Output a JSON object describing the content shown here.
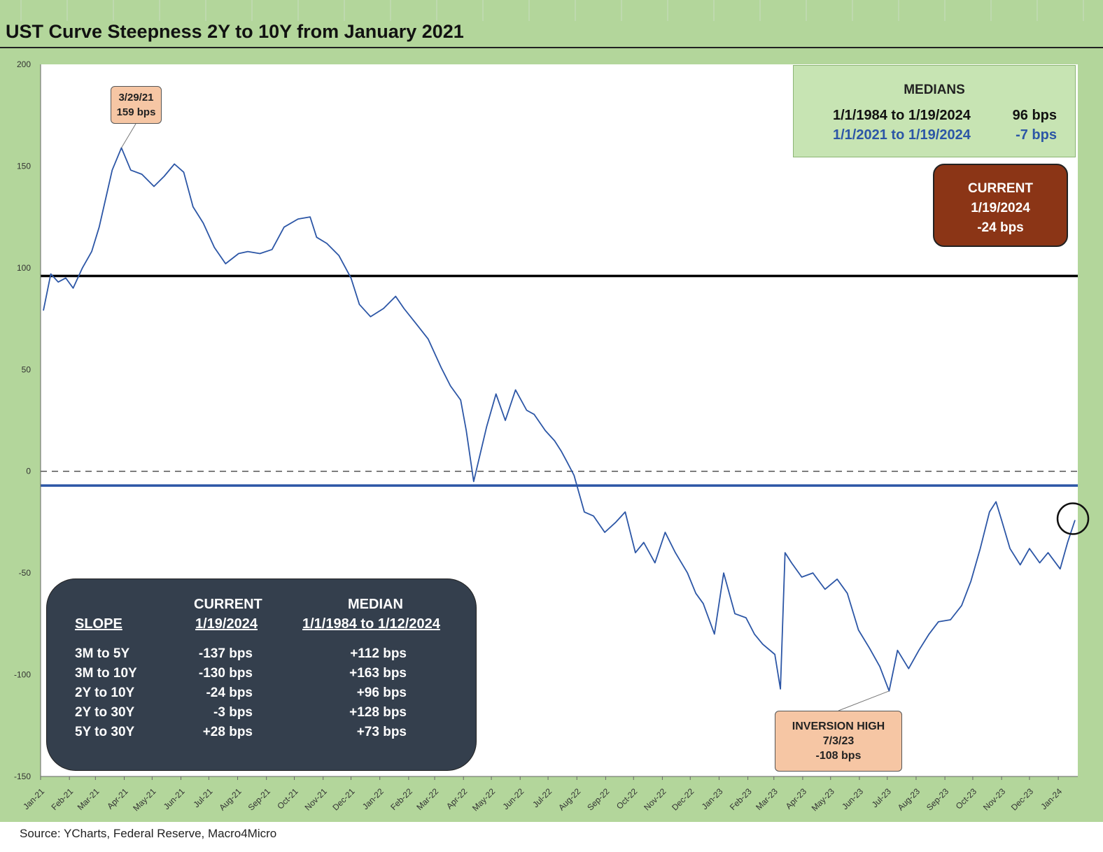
{
  "title": "UST Curve Steepness 2Y to 10Y from January 2021",
  "source": "Source: YCharts, Federal Reserve, Macro4Micro",
  "colors": {
    "frame": "#b3d69b",
    "series": "#2c56a6",
    "current_box": "#8b3516",
    "table_box": "#343f4d",
    "callout": "#f6c6a4"
  },
  "medians": {
    "title": "MEDIANS",
    "rows": [
      {
        "period": "1/1/1984 to 1/19/2024",
        "value": "96 bps",
        "color": "#111111"
      },
      {
        "period": "1/1/2021 to 1/19/2024",
        "value": "-7 bps",
        "color": "#2c56a6"
      }
    ]
  },
  "current": {
    "label": "CURRENT",
    "date": "1/19/2024",
    "value": "-24 bps"
  },
  "callouts": {
    "peak": {
      "date": "3/29/21",
      "value": "159 bps"
    },
    "low": {
      "label": "INVERSION HIGH",
      "date": "7/3/23",
      "value": "-108 bps"
    }
  },
  "slope_table": {
    "col_current": [
      "CURRENT",
      "1/19/2024"
    ],
    "col_median": [
      "MEDIAN",
      "1/1/1984 to 1/12/2024"
    ],
    "col_slope": "SLOPE",
    "rows": [
      {
        "slope": "3M to 5Y",
        "current": "-137 bps",
        "median": "+112 bps"
      },
      {
        "slope": "3M to 10Y",
        "current": "-130 bps",
        "median": "+163 bps"
      },
      {
        "slope": "2Y to 10Y",
        "current": "-24 bps",
        "median": "+96 bps"
      },
      {
        "slope": "2Y to 30Y",
        "current": "-3 bps",
        "median": "+128 bps"
      },
      {
        "slope": "5Y to 30Y",
        "current": "+28 bps",
        "median": "+73 bps"
      }
    ]
  },
  "chart_data": {
    "type": "line",
    "title": "UST Curve Steepness 2Y to 10Y from January 2021",
    "xlabel": "",
    "ylabel": "",
    "ylim": [
      -150,
      200
    ],
    "yticks": [
      200,
      150,
      100,
      50,
      0,
      -50,
      -100,
      -150
    ],
    "x_ticks": [
      "Jan-21",
      "Feb-21",
      "Mar-21",
      "Apr-21",
      "May-21",
      "Jun-21",
      "Jul-21",
      "Aug-21",
      "Sep-21",
      "Oct-21",
      "Nov-21",
      "Dec-21",
      "Jan-22",
      "Feb-22",
      "Mar-22",
      "Apr-22",
      "May-22",
      "Jun-22",
      "Jul-22",
      "Aug-22",
      "Sep-22",
      "Oct-22",
      "Nov-22",
      "Dec-22",
      "Jan-23",
      "Feb-23",
      "Mar-23",
      "Apr-23",
      "May-23",
      "Jun-23",
      "Jul-23",
      "Aug-23",
      "Sep-23",
      "Oct-23",
      "Nov-23",
      "Dec-23",
      "Jan-24"
    ],
    "reference_lines": [
      {
        "value": 96,
        "style": "solid",
        "color": "#000000"
      },
      {
        "value": -7,
        "style": "solid",
        "color": "#2c56a6"
      },
      {
        "value": 0,
        "style": "dashed",
        "color": "#333333"
      }
    ],
    "series": [
      {
        "color": "#2c56a6",
        "x": [
          "2021-01-04",
          "2021-01-12",
          "2021-01-20",
          "2021-01-28",
          "2021-02-05",
          "2021-02-15",
          "2021-02-25",
          "2021-03-05",
          "2021-03-12",
          "2021-03-19",
          "2021-03-29",
          "2021-04-08",
          "2021-04-20",
          "2021-05-03",
          "2021-05-14",
          "2021-05-25",
          "2021-06-04",
          "2021-06-14",
          "2021-06-25",
          "2021-07-07",
          "2021-07-19",
          "2021-08-02",
          "2021-08-12",
          "2021-08-25",
          "2021-09-07",
          "2021-09-20",
          "2021-10-05",
          "2021-10-18",
          "2021-10-25",
          "2021-11-05",
          "2021-11-18",
          "2021-12-01",
          "2021-12-10",
          "2021-12-22",
          "2022-01-05",
          "2022-01-18",
          "2022-01-27",
          "2022-02-10",
          "2022-02-22",
          "2022-03-08",
          "2022-03-18",
          "2022-03-29",
          "2022-04-04",
          "2022-04-12",
          "2022-04-26",
          "2022-05-06",
          "2022-05-16",
          "2022-05-27",
          "2022-06-08",
          "2022-06-16",
          "2022-06-28",
          "2022-07-08",
          "2022-07-15",
          "2022-07-21",
          "2022-07-29",
          "2022-08-09",
          "2022-08-19",
          "2022-08-31",
          "2022-09-12",
          "2022-09-22",
          "2022-10-03",
          "2022-10-12",
          "2022-10-24",
          "2022-11-04",
          "2022-11-15",
          "2022-11-28",
          "2022-12-07",
          "2022-12-15",
          "2022-12-27",
          "2023-01-06",
          "2023-01-18",
          "2023-01-30",
          "2023-02-08",
          "2023-02-17",
          "2023-03-02",
          "2023-03-08",
          "2023-03-13",
          "2023-03-20",
          "2023-03-31",
          "2023-04-12",
          "2023-04-25",
          "2023-05-08",
          "2023-05-19",
          "2023-05-31",
          "2023-06-12",
          "2023-06-23",
          "2023-07-03",
          "2023-07-12",
          "2023-07-24",
          "2023-08-04",
          "2023-08-15",
          "2023-08-25",
          "2023-09-07",
          "2023-09-19",
          "2023-09-29",
          "2023-10-09",
          "2023-10-19",
          "2023-10-26",
          "2023-11-01",
          "2023-11-10",
          "2023-11-21",
          "2023-12-01",
          "2023-12-12",
          "2023-12-21",
          "2024-01-03",
          "2024-01-11",
          "2024-01-19"
        ],
        "values": [
          79,
          97,
          93,
          95,
          90,
          100,
          108,
          120,
          134,
          148,
          159,
          148,
          146,
          140,
          145,
          151,
          147,
          130,
          122,
          110,
          102,
          107,
          108,
          107,
          109,
          120,
          124,
          125,
          115,
          112,
          106,
          95,
          82,
          76,
          80,
          86,
          80,
          72,
          65,
          51,
          42,
          35,
          20,
          -5,
          22,
          38,
          25,
          40,
          30,
          28,
          20,
          15,
          10,
          5,
          -2,
          -20,
          -22,
          -30,
          -25,
          -20,
          -40,
          -35,
          -45,
          -30,
          -40,
          -50,
          -60,
          -65,
          -80,
          -50,
          -70,
          -72,
          -80,
          -85,
          -90,
          -107,
          -40,
          -45,
          -52,
          -50,
          -58,
          -53,
          -60,
          -78,
          -87,
          -96,
          -108,
          -88,
          -97,
          -88,
          -80,
          -74,
          -73,
          -66,
          -54,
          -38,
          -20,
          -15,
          -24,
          -38,
          -46,
          -38,
          -45,
          -40,
          -48,
          -35,
          -24
        ]
      }
    ]
  }
}
